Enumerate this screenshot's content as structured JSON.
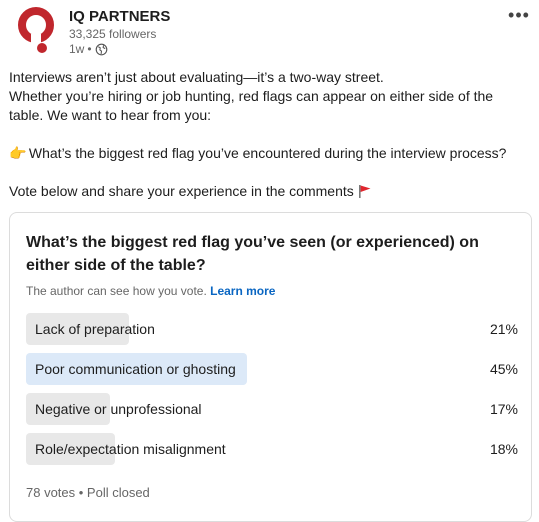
{
  "company": {
    "name": "IQ PARTNERS",
    "followers": "33,325 followers",
    "time_ago": "1w",
    "visibility_icon": "globe-icon"
  },
  "post": {
    "line1": "Interviews aren’t just about evaluating—it’s a two-way street.",
    "line2": "Whether you’re hiring or job hunting, red flags can appear on either side of the table. We want to hear from you:",
    "pointer_emoji": "👉",
    "question_line": "What’s the biggest red flag you’ve encountered during the interview process?",
    "cta_line": "Vote below and share your experience in the comments",
    "cta_icon": "red-flag-icon"
  },
  "poll": {
    "question": "What’s the biggest red flag you’ve seen (or experienced) on either side of the table?",
    "note": "The author can see how you vote.",
    "learn_more": "Learn more",
    "options": [
      {
        "label": "Lack of preparation",
        "percent": "21%",
        "value": 21,
        "selected": false
      },
      {
        "label": "Poor communication or ghosting",
        "percent": "45%",
        "value": 45,
        "selected": true
      },
      {
        "label": "Negative or unprofessional",
        "percent": "17%",
        "value": 17,
        "selected": false
      },
      {
        "label": "Role/expectation misalignment",
        "percent": "18%",
        "value": 18,
        "selected": false
      }
    ],
    "footer": "78 votes • Poll closed"
  },
  "colors": {
    "logo_red": "#c0272d",
    "link_blue": "#0a66c2",
    "selected_fill": "#dce9f8",
    "default_fill": "#e8e8e8"
  }
}
